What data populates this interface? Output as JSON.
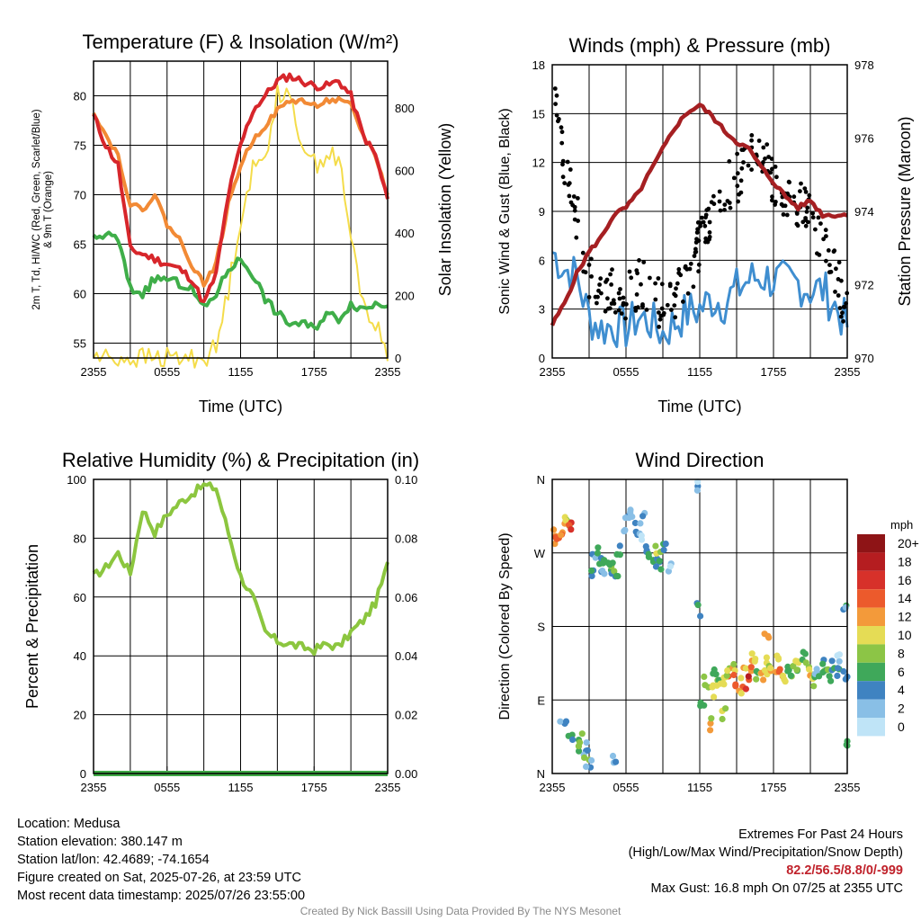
{
  "panels": {
    "temperature": {
      "title": "Temperature (F) & Insolation (W/m²)",
      "ylabel_left": "2m T, Td, HI/WC (Red, Green, Scarlet/Blue) & 9m T (Orange)",
      "ylabel_right": "Solar Insolation (Yellow)",
      "xlabel": "Time (UTC)"
    },
    "winds": {
      "title": "Winds (mph) & Pressure (mb)",
      "ylabel_left": "Sonic Wind & Gust (Blue, Black)",
      "ylabel_right": "Station Pressure (Maroon)",
      "xlabel": "Time (UTC)"
    },
    "humidity": {
      "title": "Relative Humidity (%) & Precipitation (in)",
      "ylabel_left": "Percent & Precipitation"
    },
    "direction": {
      "title": "Wind Direction",
      "ylabel_left": "Direction (Colored By Speed)",
      "legend_title": "mph",
      "legend_labels": [
        "20+",
        "18",
        "16",
        "14",
        "12",
        "10",
        "8",
        "6",
        "4",
        "2",
        "0"
      ],
      "legend_colors": [
        "#8e1416",
        "#b51d20",
        "#d7312a",
        "#ec5a2c",
        "#f39a3a",
        "#e5dc55",
        "#8cc546",
        "#3fa85a",
        "#3f83c1",
        "#89bfe6",
        "#bfe4f7"
      ]
    }
  },
  "chart_data": [
    {
      "type": "line",
      "title": "Temperature (F) & Insolation (W/m²)",
      "xlabel": "Time (UTC)",
      "ylabel": "2m T, Td, HI/WC (Red, Green, Scarlet/Blue) & 9m T (Orange)",
      "ylabel_right": "Solar Insolation (Yellow)",
      "x_ticks": [
        "2355",
        "0555",
        "1155",
        "1755",
        "2355"
      ],
      "y_ticks": [
        55,
        60,
        65,
        70,
        75,
        80
      ],
      "y_right_ticks": [
        0,
        200,
        400,
        600,
        800
      ],
      "ylim": [
        53.5,
        83.5
      ],
      "ylim_right": [
        0,
        950
      ],
      "x": [
        0,
        1,
        2,
        3,
        4,
        5,
        6,
        7,
        8,
        9,
        10,
        11,
        12,
        13,
        14,
        15,
        16,
        17,
        18,
        19,
        20,
        21,
        22,
        23,
        24
      ],
      "series": [
        {
          "name": "2m T",
          "color": "#d7262b",
          "axis": "left",
          "values": [
            78,
            75,
            73,
            64.5,
            64,
            63.5,
            63,
            62.5,
            61.5,
            59,
            62,
            70,
            75,
            78.5,
            80,
            81.5,
            82,
            81.5,
            81,
            81,
            81.5,
            80,
            76,
            74,
            69.5
          ]
        },
        {
          "name": "9m T",
          "color": "#f28a35",
          "axis": "left",
          "values": [
            78.5,
            76,
            74,
            69,
            68.5,
            70,
            67,
            65.5,
            63,
            61,
            63,
            69,
            73,
            75.5,
            77,
            78.5,
            79.5,
            79.5,
            79,
            79.5,
            79.5,
            79,
            76,
            74,
            70
          ]
        },
        {
          "name": "HI/WC",
          "color": "#d7262b",
          "axis": "left",
          "values": [
            78,
            75,
            73,
            64.5,
            64,
            63.5,
            63,
            62.5,
            61.5,
            59,
            62,
            70,
            75,
            78.5,
            80,
            81.5,
            82,
            81.5,
            81,
            81,
            81.5,
            80,
            76,
            74,
            69.5
          ]
        },
        {
          "name": "Td",
          "color": "#3fae49",
          "axis": "left",
          "values": [
            65.5,
            66,
            65.5,
            60.5,
            60,
            61.5,
            61.5,
            61,
            60.5,
            58.5,
            60,
            62.5,
            63.5,
            62,
            59.5,
            58,
            57,
            57,
            56.5,
            58,
            57.5,
            59,
            58.5,
            59,
            59
          ]
        },
        {
          "name": "Solar Insolation",
          "color": "#f4dc4a",
          "axis": "right",
          "values": [
            5,
            2,
            0,
            0,
            0,
            0,
            0,
            0,
            0,
            2,
            30,
            220,
            450,
            600,
            640,
            860,
            820,
            700,
            620,
            650,
            640,
            380,
            180,
            100,
            20
          ]
        }
      ]
    },
    {
      "type": "line",
      "title": "Winds (mph) & Pressure (mb)",
      "xlabel": "Time (UTC)",
      "ylabel": "Sonic Wind & Gust (Blue, Black)",
      "ylabel_right": "Station Pressure (Maroon)",
      "x_ticks": [
        "2355",
        "0555",
        "1155",
        "1755",
        "2355"
      ],
      "y_ticks": [
        0,
        3,
        6,
        9,
        12,
        15,
        18
      ],
      "y_right_ticks": [
        970,
        972,
        974,
        976,
        978
      ],
      "ylim": [
        0,
        18
      ],
      "ylim_right": [
        970,
        978
      ],
      "x": [
        0,
        1,
        2,
        3,
        4,
        5,
        6,
        7,
        8,
        9,
        10,
        11,
        12,
        13,
        14,
        15,
        16,
        17,
        18,
        19,
        20,
        21,
        22,
        23,
        24
      ],
      "series": [
        {
          "name": "Sonic Wind",
          "color": "#3f8ed0",
          "axis": "left",
          "values": [
            6.5,
            5.5,
            5,
            2.5,
            1.8,
            2,
            1.8,
            2.5,
            2.2,
            1.5,
            2.2,
            2.8,
            3,
            3.6,
            3.4,
            4.2,
            4.8,
            5,
            4.8,
            4.6,
            4.6,
            4.2,
            4.2,
            3.2,
            2
          ]
        },
        {
          "name": "Gust",
          "color": "#000000",
          "axis": "left",
          "values": [
            16.8,
            12,
            8.5,
            5,
            4,
            4.5,
            3.5,
            4.5,
            4.5,
            3,
            3.5,
            5,
            7,
            9,
            10.5,
            11,
            12,
            12.5,
            11,
            9.5,
            9.5,
            8.5,
            7,
            5,
            3
          ]
        },
        {
          "name": "Station Pressure",
          "color": "#a51f22",
          "axis": "right",
          "values": [
            970.9,
            971.5,
            972.3,
            972.9,
            973.3,
            973.9,
            974.1,
            974.5,
            975.1,
            975.7,
            976.3,
            976.7,
            976.9,
            976.6,
            976.2,
            975.9,
            975.7,
            975.2,
            974.8,
            974.4,
            974.1,
            974.3,
            973.9,
            973.9,
            973.9
          ]
        }
      ]
    },
    {
      "type": "line",
      "title": "Relative Humidity (%) & Precipitation (in)",
      "ylabel": "Percent & Precipitation",
      "x_ticks": [
        "2355",
        "0555",
        "1155",
        "1755",
        "2355"
      ],
      "y_ticks": [
        0,
        20,
        40,
        60,
        80,
        100
      ],
      "y_right_ticks": [
        "0.00",
        "0.02",
        "0.04",
        "0.06",
        "0.08",
        "0.10"
      ],
      "ylim": [
        0,
        100
      ],
      "ylim_right": [
        0,
        0.1
      ],
      "x": [
        0,
        1,
        2,
        3,
        4,
        5,
        6,
        7,
        8,
        9,
        10,
        11,
        12,
        13,
        14,
        15,
        16,
        17,
        18,
        19,
        20,
        21,
        22,
        23,
        24
      ],
      "series": [
        {
          "name": "Relative Humidity",
          "color": "#8cc63f",
          "axis": "left",
          "values": [
            67,
            70,
            75,
            68,
            90,
            82,
            88,
            92,
            95,
            98,
            97,
            82,
            67,
            60,
            48,
            45,
            44,
            43,
            42,
            44,
            43,
            48,
            52,
            58,
            71
          ]
        },
        {
          "name": "Precipitation",
          "color": "#3fa845",
          "axis": "right",
          "values": [
            0,
            0,
            0,
            0,
            0,
            0,
            0,
            0,
            0,
            0,
            0,
            0,
            0,
            0,
            0,
            0,
            0,
            0,
            0,
            0,
            0,
            0,
            0,
            0,
            0
          ]
        }
      ]
    },
    {
      "type": "scatter",
      "title": "Wind Direction",
      "ylabel": "Direction (Colored By Speed)",
      "x_ticks": [
        "2355",
        "0555",
        "1155",
        "1755",
        "2355"
      ],
      "y_ticks": [
        "N",
        "E",
        "S",
        "W",
        "N"
      ],
      "ylim": [
        0,
        360
      ],
      "legend_title": "mph",
      "points": [
        [
          0.3,
          290,
          6
        ],
        [
          0.5,
          295,
          7
        ],
        [
          0.8,
          300,
          6
        ],
        [
          1.0,
          305,
          5
        ],
        [
          1.3,
          310,
          4
        ],
        [
          1.6,
          300,
          8
        ],
        [
          2.0,
          35,
          3
        ],
        [
          2.3,
          40,
          4
        ],
        [
          2.6,
          30,
          2
        ],
        [
          2.8,
          20,
          3
        ],
        [
          3.0,
          12,
          1
        ],
        [
          5.0,
          15,
          2
        ],
        [
          3.2,
          250,
          2
        ],
        [
          3.5,
          270,
          2
        ],
        [
          3.8,
          265,
          3
        ],
        [
          4.0,
          250,
          2
        ],
        [
          4.3,
          260,
          3
        ],
        [
          4.6,
          255,
          4
        ],
        [
          4.9,
          250,
          2
        ],
        [
          5.2,
          240,
          3
        ],
        [
          5.5,
          270,
          2
        ],
        [
          5.9,
          295,
          1
        ],
        [
          6.2,
          310,
          1
        ],
        [
          6.5,
          320,
          1
        ],
        [
          6.8,
          300,
          2
        ],
        [
          7.1,
          290,
          0
        ],
        [
          7.4,
          310,
          1
        ],
        [
          7.7,
          280,
          2
        ],
        [
          8.0,
          270,
          3
        ],
        [
          8.3,
          260,
          2
        ],
        [
          8.6,
          270,
          4
        ],
        [
          8.9,
          255,
          2
        ],
        [
          9.2,
          275,
          2
        ],
        [
          9.5,
          250,
          1
        ],
        [
          12.0,
          355,
          1
        ],
        [
          11.8,
          200,
          2
        ],
        [
          12.3,
          90,
          3
        ],
        [
          12.6,
          110,
          4
        ],
        [
          12.9,
          100,
          5
        ],
        [
          13.2,
          120,
          3
        ],
        [
          13.5,
          115,
          4
        ],
        [
          13.8,
          105,
          5
        ],
        [
          14.1,
          110,
          6
        ],
        [
          14.4,
          120,
          4
        ],
        [
          14.7,
          130,
          5
        ],
        [
          15.0,
          115,
          7
        ],
        [
          15.3,
          100,
          6
        ],
        [
          15.6,
          125,
          5
        ],
        [
          15.9,
          110,
          8
        ],
        [
          16.2,
          130,
          6
        ],
        [
          16.5,
          140,
          5
        ],
        [
          16.8,
          120,
          4
        ],
        [
          17.1,
          115,
          6
        ],
        [
          17.4,
          135,
          5
        ],
        [
          17.7,
          125,
          4
        ],
        [
          18.0,
          130,
          6
        ],
        [
          18.3,
          140,
          5
        ],
        [
          18.6,
          120,
          7
        ],
        [
          18.9,
          115,
          4
        ],
        [
          19.2,
          130,
          3
        ],
        [
          19.5,
          125,
          4
        ],
        [
          19.8,
          135,
          5
        ],
        [
          20.1,
          120,
          4
        ],
        [
          20.4,
          140,
          3
        ],
        [
          20.7,
          130,
          4
        ],
        [
          21.0,
          125,
          5
        ],
        [
          21.3,
          115,
          3
        ],
        [
          21.6,
          130,
          2
        ],
        [
          21.9,
          125,
          3
        ],
        [
          22.2,
          135,
          2
        ],
        [
          22.5,
          120,
          3
        ],
        [
          22.8,
          130,
          2
        ],
        [
          23.1,
          125,
          2
        ],
        [
          23.4,
          140,
          1
        ],
        [
          23.8,
          120,
          2
        ],
        [
          24.0,
          40,
          3
        ],
        [
          23.9,
          200,
          2
        ],
        [
          13.0,
          60,
          5
        ],
        [
          14.0,
          75,
          4
        ],
        [
          17.5,
          165,
          6
        ],
        [
          1.5,
          45,
          3
        ],
        [
          0.9,
          70,
          2
        ]
      ]
    }
  ],
  "info": {
    "location": "Location: Medusa",
    "elevation": "Station elevation: 380.147 m",
    "latlon": "Station lat/lon: 42.4689; -74.1654",
    "created": "Figure created on Sat, 2025-07-26, at 23:59 UTC",
    "timestamp": "Most recent data timestamp: 2025/07/26 23:55:00"
  },
  "extremes": {
    "title": "Extremes For Past 24 Hours",
    "subtitle": "(High/Low/Max Wind/Precipitation/Snow Depth)",
    "values": "82.2/56.5/8.8/0/-999",
    "gust": "Max Gust: 16.8 mph On 07/25 at 2355 UTC"
  },
  "credit": "Created By Nick Bassill Using Data Provided By The NYS Mesonet"
}
